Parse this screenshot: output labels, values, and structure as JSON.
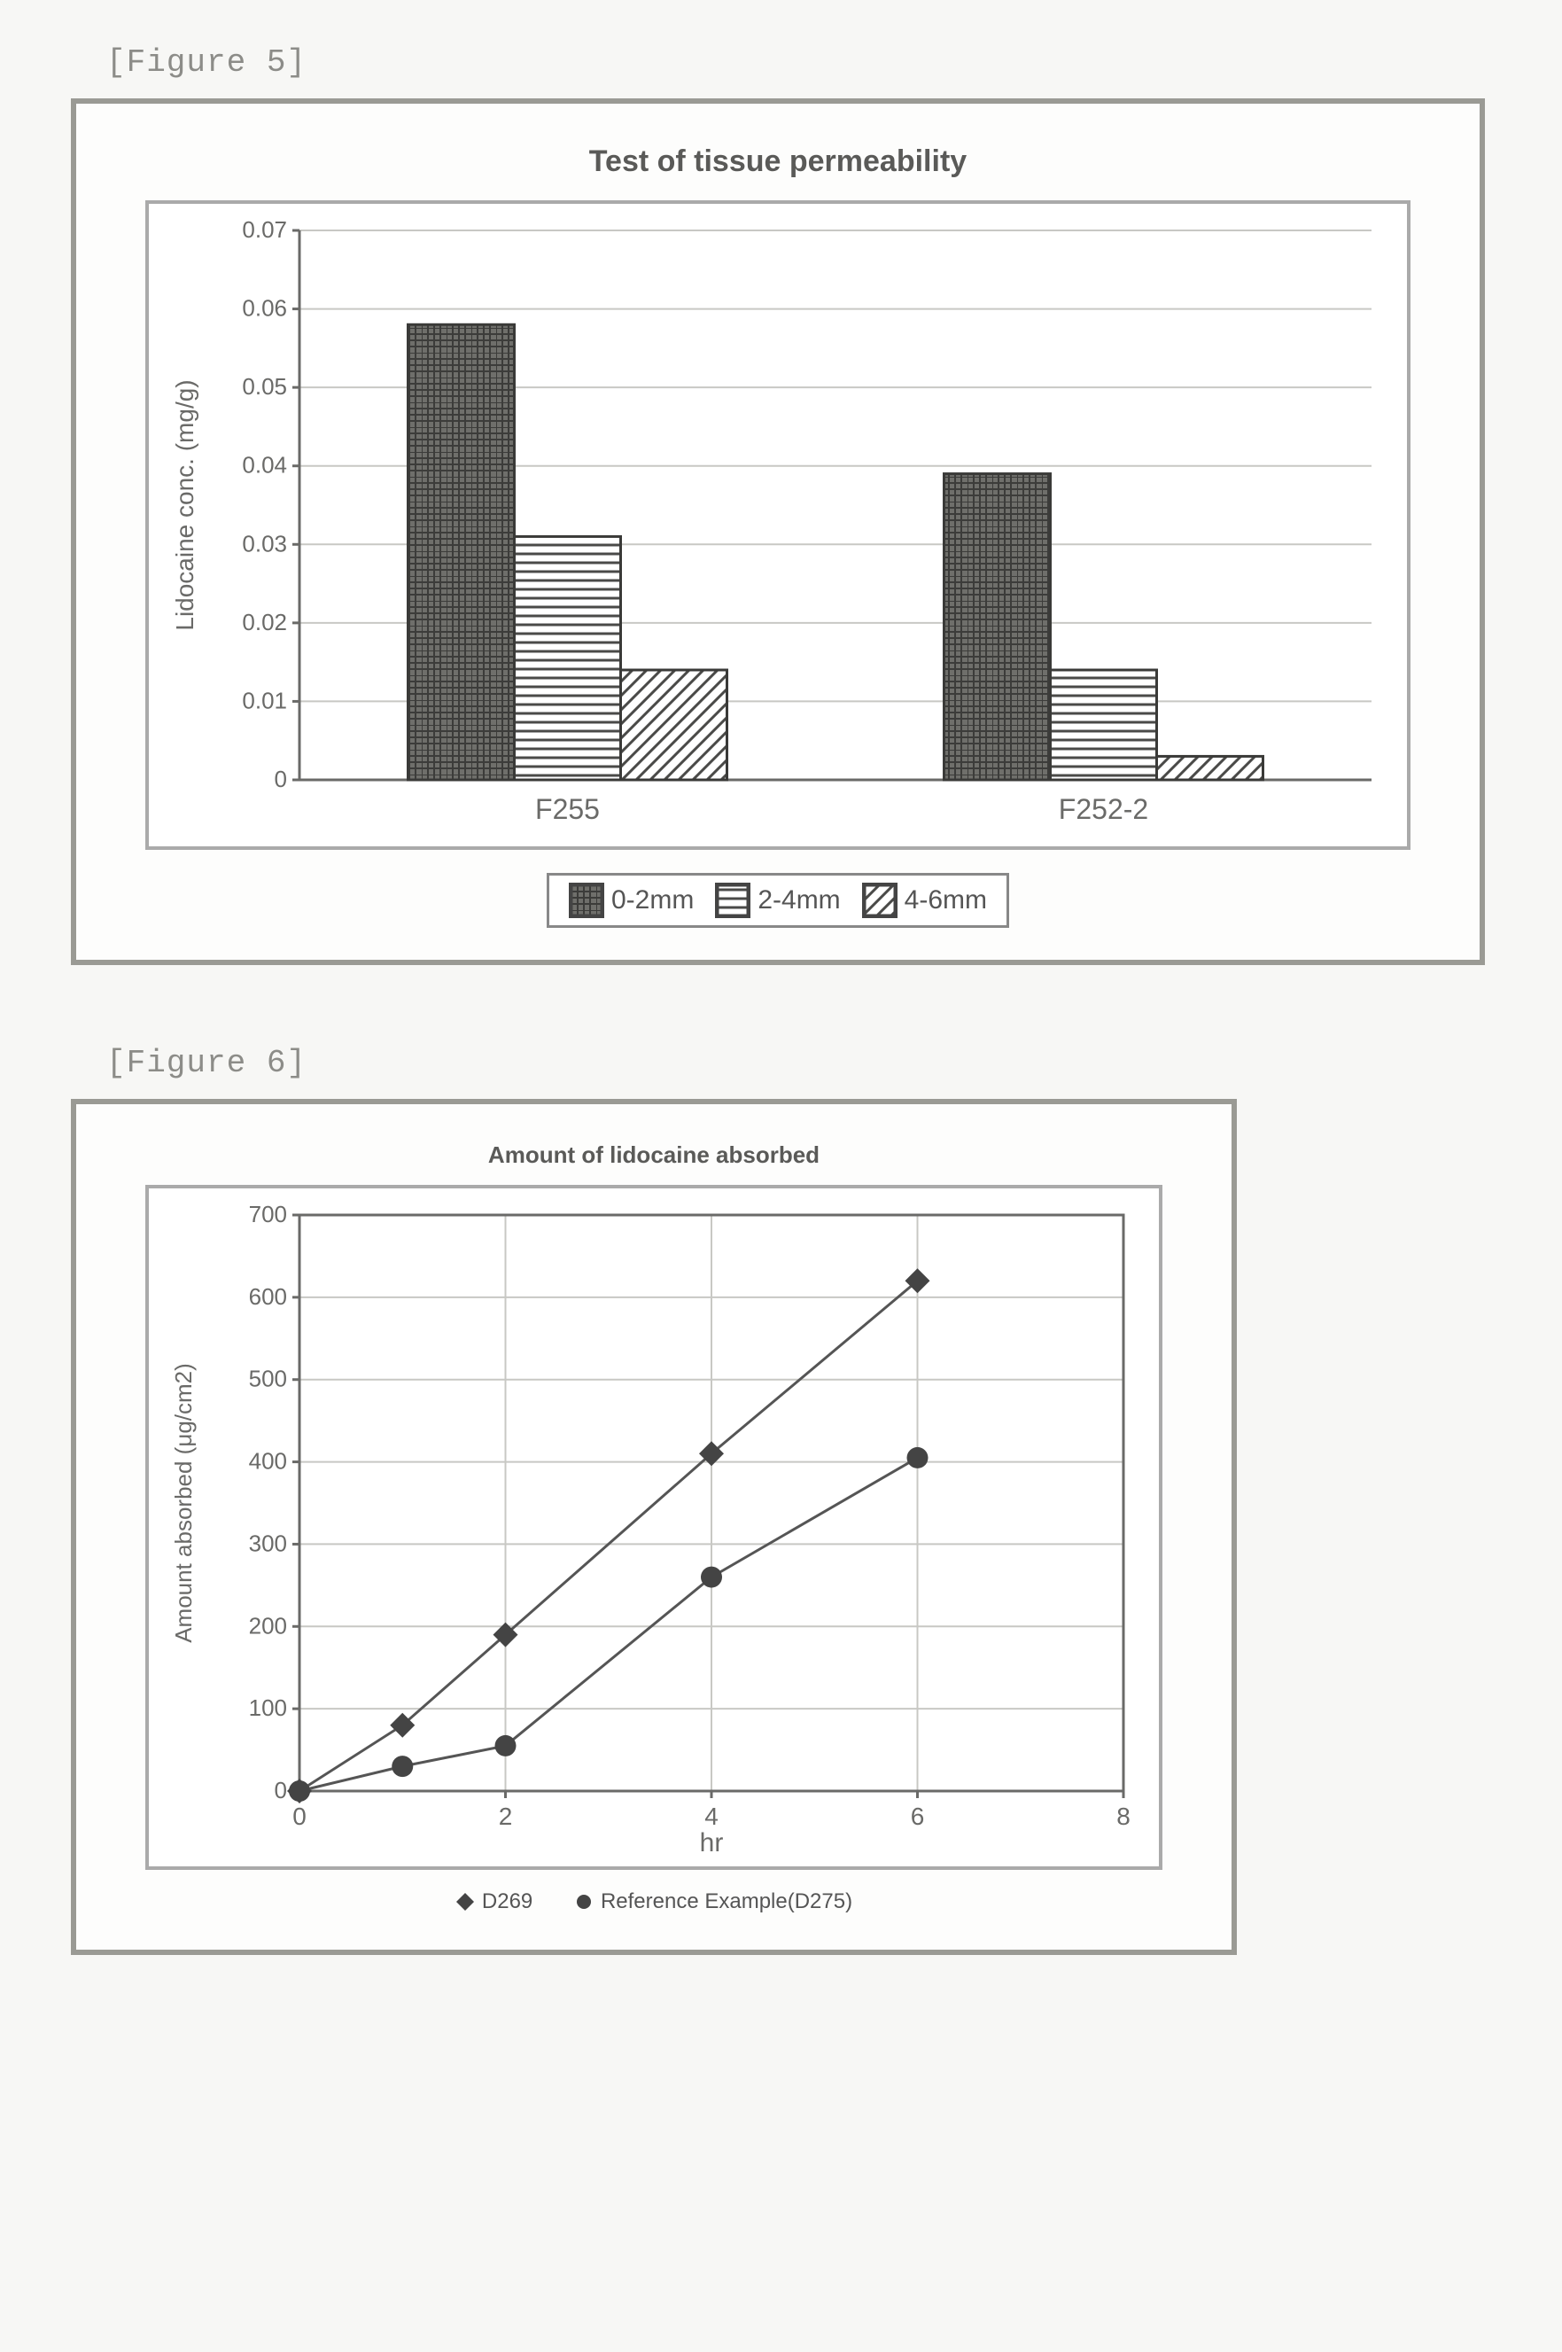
{
  "figure5": {
    "caption": "[Figure 5]",
    "chart": {
      "type": "bar",
      "title": "Test of tissue permeability",
      "title_fontsize": 34,
      "ylabel": "Lidocaine conc. (mg/g)",
      "label_fontsize": 28,
      "categories": [
        "F255",
        "F252-2"
      ],
      "category_fontsize": 32,
      "ytick_values": [
        "0",
        "0.01",
        "0.02",
        "0.03",
        "0.04",
        "0.05",
        "0.06",
        "0.07"
      ],
      "ylim": [
        0,
        0.07
      ],
      "ytick_step": 0.01,
      "series": [
        {
          "name": "0-2mm",
          "values": [
            0.058,
            0.039
          ],
          "fill": "crosshatch-dark"
        },
        {
          "name": "2-4mm",
          "values": [
            0.031,
            0.014
          ],
          "fill": "horizontal-lines"
        },
        {
          "name": "4-6mm",
          "values": [
            0.014,
            0.003
          ],
          "fill": "diagonal-lines"
        }
      ],
      "bar_border_color": "#3a3a38",
      "background_color": "#ffffff",
      "grid_color": "#c8c8c4",
      "legend_labels": [
        "0-2mm",
        "2-4mm",
        "4-6mm"
      ]
    }
  },
  "figure6": {
    "caption": "[Figure 6]",
    "chart": {
      "type": "line",
      "title": "Amount of lidocaine absorbed",
      "title_fontsize": 26,
      "xlabel": "hr",
      "ylabel": "Amount absorbed (μg/cm2)",
      "label_fontsize": 26,
      "xlim": [
        0,
        8
      ],
      "xtick_values": [
        "0",
        "2",
        "4",
        "6",
        "8"
      ],
      "ylim": [
        0,
        700
      ],
      "ytick_values": [
        "0",
        "100",
        "200",
        "300",
        "400",
        "500",
        "600",
        "700"
      ],
      "grid_color": "#c8c8c4",
      "background_color": "#ffffff",
      "series": [
        {
          "name": "D269",
          "marker": "diamond",
          "marker_size": 14,
          "line_color": "#555",
          "points": [
            [
              0,
              0
            ],
            [
              1,
              80
            ],
            [
              2,
              190
            ],
            [
              4,
              410
            ],
            [
              6,
              620
            ]
          ]
        },
        {
          "name": "Reference Example(D275)",
          "marker": "circle",
          "marker_size": 12,
          "line_color": "#555",
          "points": [
            [
              0,
              0
            ],
            [
              1,
              30
            ],
            [
              2,
              55
            ],
            [
              4,
              260
            ],
            [
              6,
              405
            ]
          ]
        }
      ],
      "legend_labels": [
        "D269",
        "Reference Example(D275)"
      ]
    }
  }
}
